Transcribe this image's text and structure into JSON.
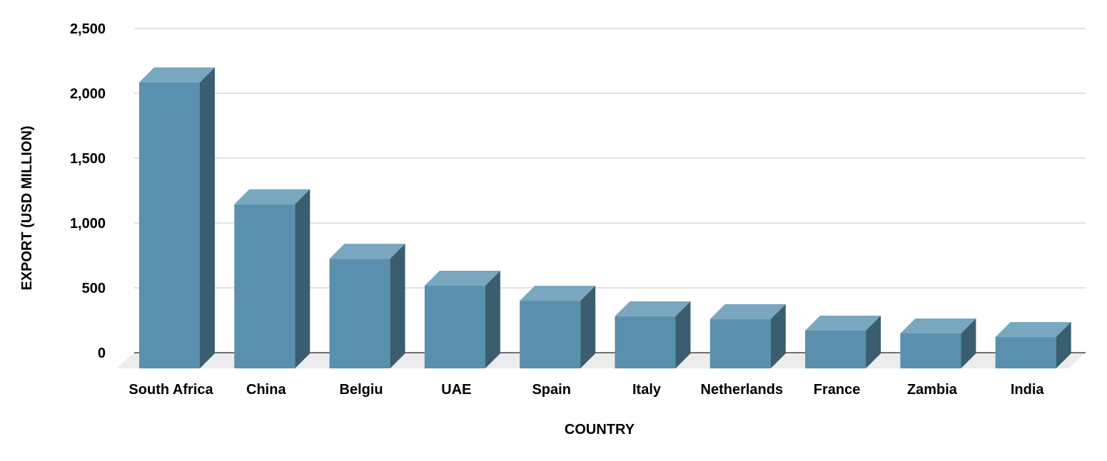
{
  "chart_data": {
    "type": "bar",
    "style": "3d-column",
    "xlabel": "COUNTRY",
    "ylabel": "EXPORT (USD MILLION)",
    "categories": [
      "South Africa",
      "China",
      "Belgiu",
      "UAE",
      "Spain",
      "Italy",
      "Netherlands",
      "France",
      "Zambia",
      "India"
    ],
    "values": [
      2200,
      1260,
      840,
      632,
      516,
      396,
      374,
      286,
      264,
      236
    ],
    "ylim": [
      0,
      2500
    ],
    "yticks": [
      0,
      500,
      1000,
      1500,
      2000,
      2500
    ],
    "ytick_labels": [
      "0",
      "500",
      "1,000",
      "1,500",
      "2,000",
      "2,500"
    ],
    "grid": true,
    "legend": "none",
    "colors": {
      "front": "#5990ad",
      "top": "#79a7bf",
      "side": "#3a5e6f",
      "floor": "#ececec",
      "grid": "#d0d0d0"
    }
  }
}
